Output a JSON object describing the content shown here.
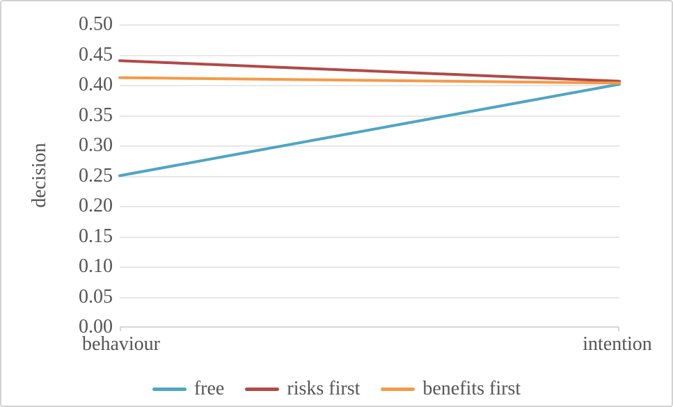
{
  "colors": {
    "free_line": "#4fa5c2",
    "risks_first_line": "#b14a48",
    "benefits_first_line": "#f59a47",
    "gridline": "#e7e7e7",
    "axis_line": "#d6d6d6",
    "text": "#555555",
    "figure_border": "#d2d2d2",
    "background": "#ffffff"
  },
  "chart_data": {
    "type": "line",
    "title": "",
    "xlabel": "",
    "ylabel": "decision",
    "categories": [
      "behaviour",
      "intention"
    ],
    "series": [
      {
        "name": "free",
        "color": "#4fa5c2",
        "values": [
          0.25,
          0.401
        ]
      },
      {
        "name": "risks first",
        "color": "#b14a48",
        "values": [
          0.44,
          0.406
        ]
      },
      {
        "name": "benefits first",
        "color": "#f59a47",
        "values": [
          0.412,
          0.403
        ]
      }
    ],
    "ylim": [
      0.0,
      0.5
    ],
    "ytick_step": 0.05,
    "yticks": [
      "0.50",
      "0.45",
      "0.40",
      "0.35",
      "0.30",
      "0.25",
      "0.20",
      "0.15",
      "0.10",
      "0.05",
      "0.00"
    ],
    "grid": "horizontal",
    "legend_position": "bottom"
  }
}
